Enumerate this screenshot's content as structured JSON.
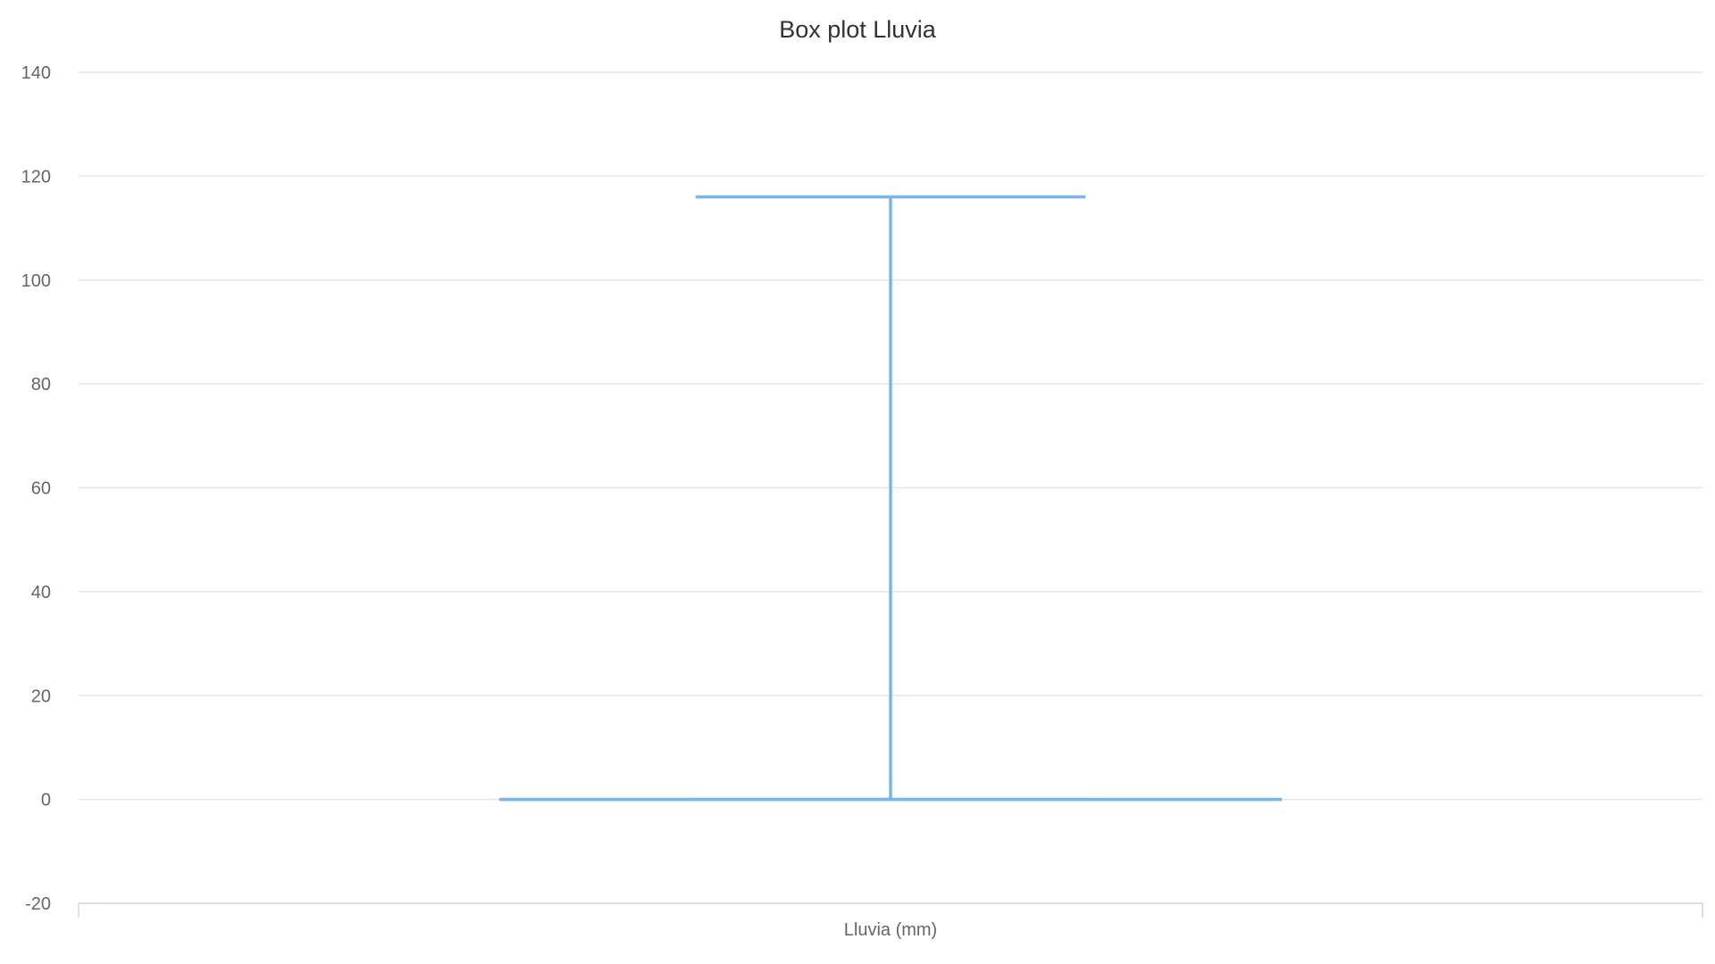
{
  "chart_data": {
    "type": "boxplot",
    "title": "Box plot Lluvia",
    "xlabel": "",
    "ylabel": "",
    "categories": [
      "Lluvia (mm)"
    ],
    "series": [
      {
        "values": [
          {
            "min": 0,
            "q1": 0,
            "median": 0,
            "q3": 0,
            "max": 116
          }
        ]
      }
    ],
    "ylim": [
      -20,
      140
    ],
    "yticks": [
      -20,
      0,
      20,
      40,
      60,
      80,
      100,
      120,
      140
    ],
    "ytick_labels": [
      "-20",
      "0",
      "20",
      "40",
      "60",
      "80",
      "100",
      "120",
      "140"
    ],
    "grid": true,
    "legend": "none",
    "color": "#7cb5ec"
  }
}
